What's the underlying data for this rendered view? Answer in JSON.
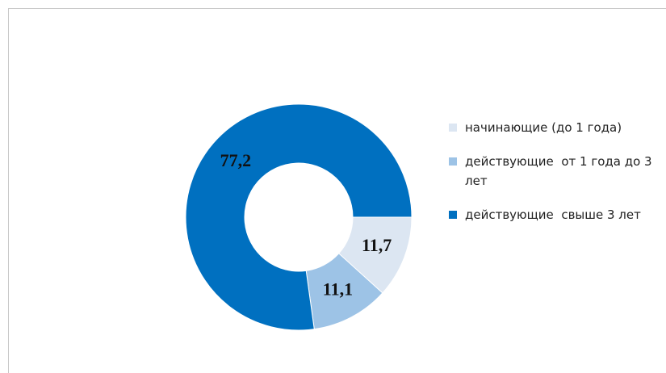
{
  "chart_data": {
    "type": "donut",
    "categories": [
      "начинающие (до 1 года)",
      "действующие  от 1 года до 3 лет",
      "действующие  свыше 3 лет"
    ],
    "values": [
      11.7,
      11.1,
      77.2
    ],
    "value_labels": [
      "11,7",
      "11,1",
      "77,2"
    ],
    "colors": [
      "#dce6f2",
      "#9dc3e6",
      "#0070c0"
    ],
    "legend": "right"
  }
}
